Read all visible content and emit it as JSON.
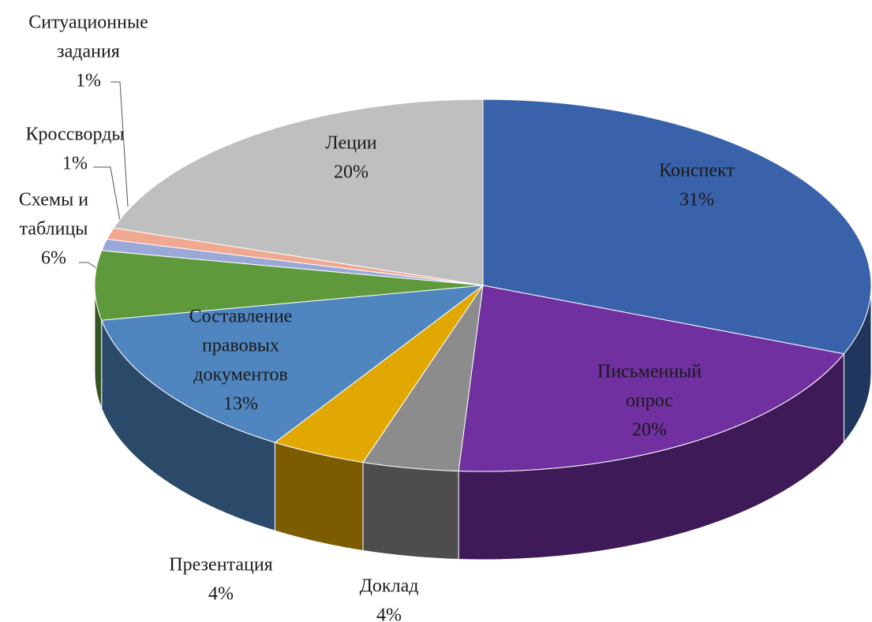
{
  "chart_data": {
    "type": "pie3d",
    "categories": [
      [
        "Конспект"
      ],
      [
        "Письменный",
        "опрос"
      ],
      [
        "Доклад"
      ],
      [
        "Презентация"
      ],
      [
        "Составление",
        "правовых",
        "документов"
      ],
      [
        "Схемы и",
        "таблицы"
      ],
      [
        "Кроссворды"
      ],
      [
        "Ситуационные",
        "задания"
      ],
      [
        "Леции"
      ]
    ],
    "values": [
      31,
      20,
      4,
      4,
      13,
      6,
      1,
      1,
      20
    ],
    "value_labels": [
      "31%",
      "20%",
      "4%",
      "4%",
      "13%",
      "6%",
      "1%",
      "1%",
      "20%"
    ],
    "colors": [
      "#3a62ab",
      "#7030a0",
      "#8c8c8c",
      "#e0a800",
      "#4f86c0",
      "#5e9a3c",
      "#9aa8d8",
      "#f0a890",
      "#bfbfbf"
    ]
  }
}
